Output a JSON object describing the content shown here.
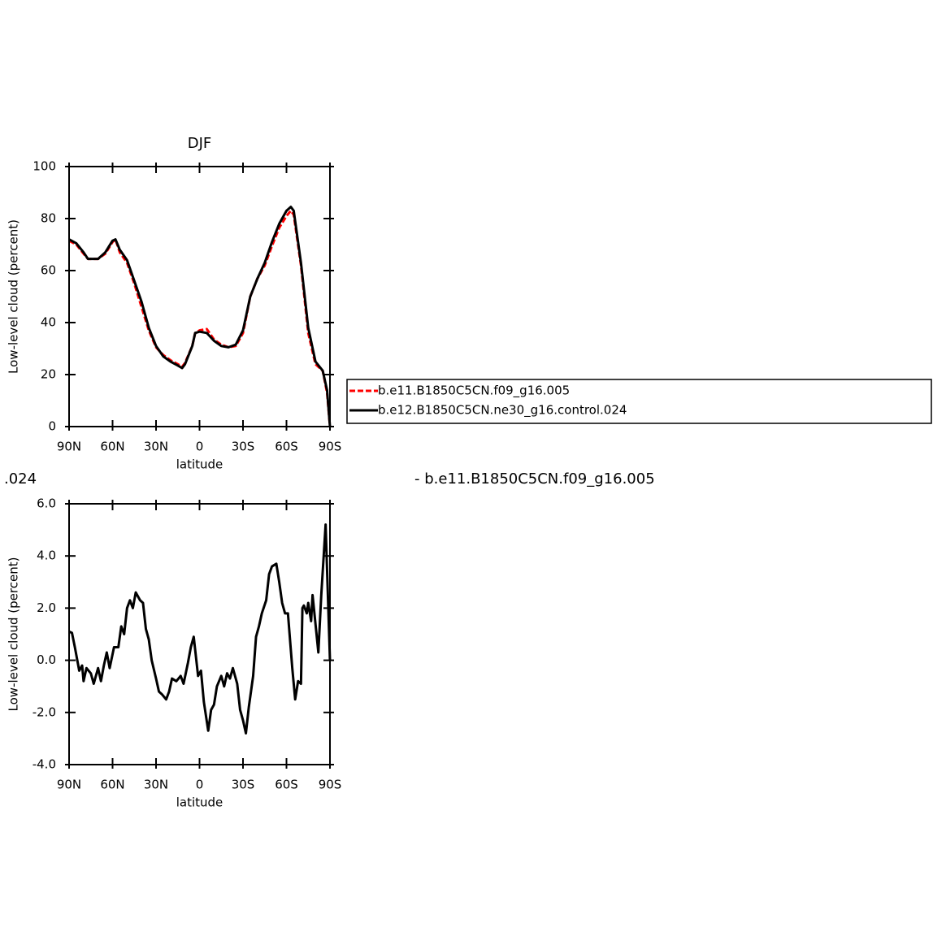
{
  "chart_data": [
    {
      "type": "line",
      "title": "DJF",
      "xlabel": "latitude",
      "ylabel": "Low-level cloud (percent)",
      "x": [
        90,
        85,
        80,
        77,
        70,
        65,
        60,
        58,
        55,
        50,
        45,
        40,
        35,
        30,
        25,
        20,
        15,
        12,
        10,
        5,
        3,
        0,
        -5,
        -10,
        -15,
        -20,
        -25,
        -30,
        -35,
        -40,
        -45,
        -50,
        -55,
        -60,
        -63,
        -65,
        -70,
        -75,
        -80,
        -85,
        -88,
        -90
      ],
      "series": [
        {
          "name": "b.e11.B1850C5CN.f09_g16.005",
          "color": "#ff0000",
          "dash": true,
          "values": [
            71.5,
            70,
            66.5,
            64.5,
            64.5,
            66.5,
            71,
            72,
            67,
            63,
            55,
            46,
            37,
            30.5,
            27.5,
            25.5,
            24,
            23,
            24.5,
            31,
            36,
            37,
            37.5,
            33.5,
            31.5,
            30.5,
            31,
            36,
            50,
            57,
            62,
            69.5,
            76.5,
            81,
            83,
            81.5,
            62,
            36,
            24,
            21.5,
            13,
            0
          ]
        },
        {
          "name": "b.e12.B1850C5CN.ne30_g16.control.024",
          "color": "#000000",
          "dash": false,
          "values": [
            72,
            70.5,
            67,
            64.5,
            64.5,
            67,
            71.5,
            72,
            68,
            64,
            56,
            48,
            38,
            31,
            27,
            25,
            23.5,
            22.5,
            24,
            31,
            36,
            36.5,
            36,
            33,
            31,
            30.5,
            31.5,
            37,
            50,
            57,
            63,
            71,
            78,
            83,
            84.5,
            83,
            63,
            38,
            25,
            21.5,
            14,
            0
          ]
        }
      ],
      "xlim": [
        90,
        -90
      ],
      "xticks": [
        {
          "value": 90,
          "label": "90N"
        },
        {
          "value": 60,
          "label": "60N"
        },
        {
          "value": 30,
          "label": "30N"
        },
        0,
        {
          "value": -30,
          "label": "30S"
        },
        {
          "value": -60,
          "label": "60S"
        },
        {
          "value": -90,
          "label": "90S"
        }
      ],
      "ylim": [
        0,
        100
      ],
      "yticks": [
        0,
        20,
        40,
        60,
        80,
        100
      ]
    },
    {
      "type": "line",
      "subtitle_left": ".024",
      "subtitle_right": "- b.e11.B1850C5CN.f09_g16.005",
      "xlabel": "latitude",
      "ylabel": "Low-level cloud (percent)",
      "x": [
        90,
        88,
        86,
        83,
        81,
        80,
        78,
        75,
        73,
        70,
        68,
        66,
        64,
        62,
        59,
        56,
        54,
        52,
        50,
        48,
        46,
        44,
        41,
        39,
        37,
        35,
        33,
        30,
        28,
        26,
        23,
        21,
        19,
        16,
        13,
        11,
        8,
        6,
        4,
        3,
        1,
        -1,
        -3,
        -6,
        -8,
        -10,
        -12,
        -15,
        -17,
        -19,
        -21,
        -23,
        -26,
        -28,
        -30,
        -32,
        -34,
        -37,
        -39,
        -41,
        -43,
        -46,
        -48,
        -50,
        -53,
        -55,
        -57,
        -59,
        -61,
        -64,
        -66,
        -68,
        -70,
        -71,
        -72,
        -74,
        -75,
        -77,
        -78,
        -80,
        -82,
        -84,
        -87,
        -90
      ],
      "series": [
        {
          "color": "#000000",
          "values": [
            1.1,
            1.05,
            0.5,
            -0.4,
            -0.2,
            -0.8,
            -0.3,
            -0.5,
            -0.9,
            -0.3,
            -0.8,
            -0.2,
            0.3,
            -0.3,
            0.5,
            0.5,
            1.3,
            1.0,
            2.0,
            2.3,
            2.0,
            2.6,
            2.3,
            2.2,
            1.2,
            0.8,
            0.0,
            -0.7,
            -1.2,
            -1.3,
            -1.5,
            -1.2,
            -0.7,
            -0.8,
            -0.6,
            -0.9,
            -0.1,
            0.5,
            0.9,
            0.4,
            -0.6,
            -0.4,
            -1.6,
            -2.7,
            -1.9,
            -1.7,
            -1.0,
            -0.6,
            -1.0,
            -0.5,
            -0.7,
            -0.3,
            -0.9,
            -1.9,
            -2.3,
            -2.8,
            -1.8,
            -0.6,
            0.9,
            1.3,
            1.8,
            2.3,
            3.3,
            3.6,
            3.7,
            3.0,
            2.2,
            1.8,
            1.8,
            -0.3,
            -1.5,
            -0.8,
            -0.9,
            2.0,
            2.1,
            1.8,
            2.2,
            1.5,
            2.5,
            1.4,
            0.3,
            2.5,
            5.2,
            0.0
          ]
        }
      ],
      "xlim": [
        90,
        -90
      ],
      "xticks": [
        {
          "value": 90,
          "label": "90N"
        },
        {
          "value": 60,
          "label": "60N"
        },
        {
          "value": 30,
          "label": "30N"
        },
        0,
        {
          "value": -30,
          "label": "30S"
        },
        {
          "value": -60,
          "label": "60S"
        },
        {
          "value": -90,
          "label": "90S"
        }
      ],
      "ylim": [
        -4,
        6
      ],
      "yticks": [
        {
          "value": -4,
          "label": "-4.0"
        },
        {
          "value": -2,
          "label": "-2.0"
        },
        {
          "value": 0,
          "label": "0.0"
        },
        {
          "value": 2,
          "label": "2.0"
        },
        {
          "value": 4,
          "label": "4.0"
        },
        {
          "value": 6,
          "label": "6.0"
        }
      ]
    }
  ]
}
